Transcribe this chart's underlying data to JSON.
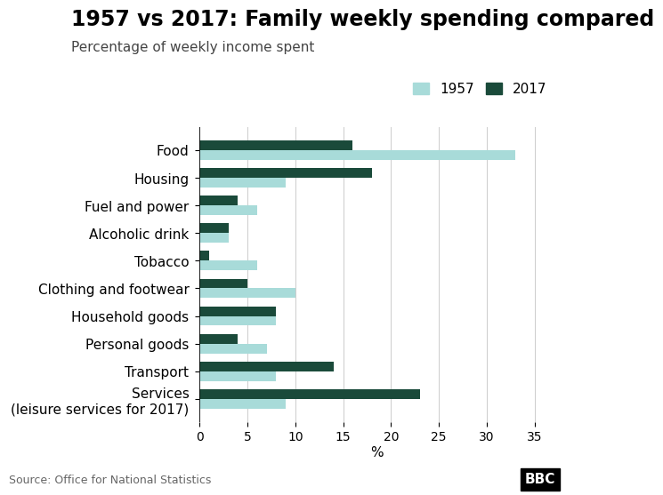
{
  "title": "1957 vs 2017: Family weekly spending compared",
  "subtitle": "Percentage of weekly income spent",
  "categories": [
    "Food",
    "Housing",
    "Fuel and power",
    "Alcoholic drink",
    "Tobacco",
    "Clothing and footwear",
    "Household goods",
    "Personal goods",
    "Transport",
    "Services\n(leisure services for 2017)"
  ],
  "values_1957": [
    33,
    9,
    6,
    3,
    6,
    10,
    8,
    7,
    8,
    9
  ],
  "values_2017": [
    16,
    18,
    4,
    3,
    1,
    5,
    8,
    4,
    14,
    23
  ],
  "color_1957": "#a8dbd9",
  "color_2017": "#1a4a3a",
  "xlabel": "%",
  "xlim": [
    0,
    37
  ],
  "xticks": [
    0,
    5,
    10,
    15,
    20,
    25,
    30,
    35
  ],
  "background_color": "#ffffff",
  "source_text": "Source: Office for National Statistics",
  "bbc_text": "BBC",
  "bar_height": 0.35,
  "title_fontsize": 17,
  "subtitle_fontsize": 11,
  "label_fontsize": 11,
  "tick_fontsize": 10,
  "legend_fontsize": 11,
  "source_fontsize": 9
}
